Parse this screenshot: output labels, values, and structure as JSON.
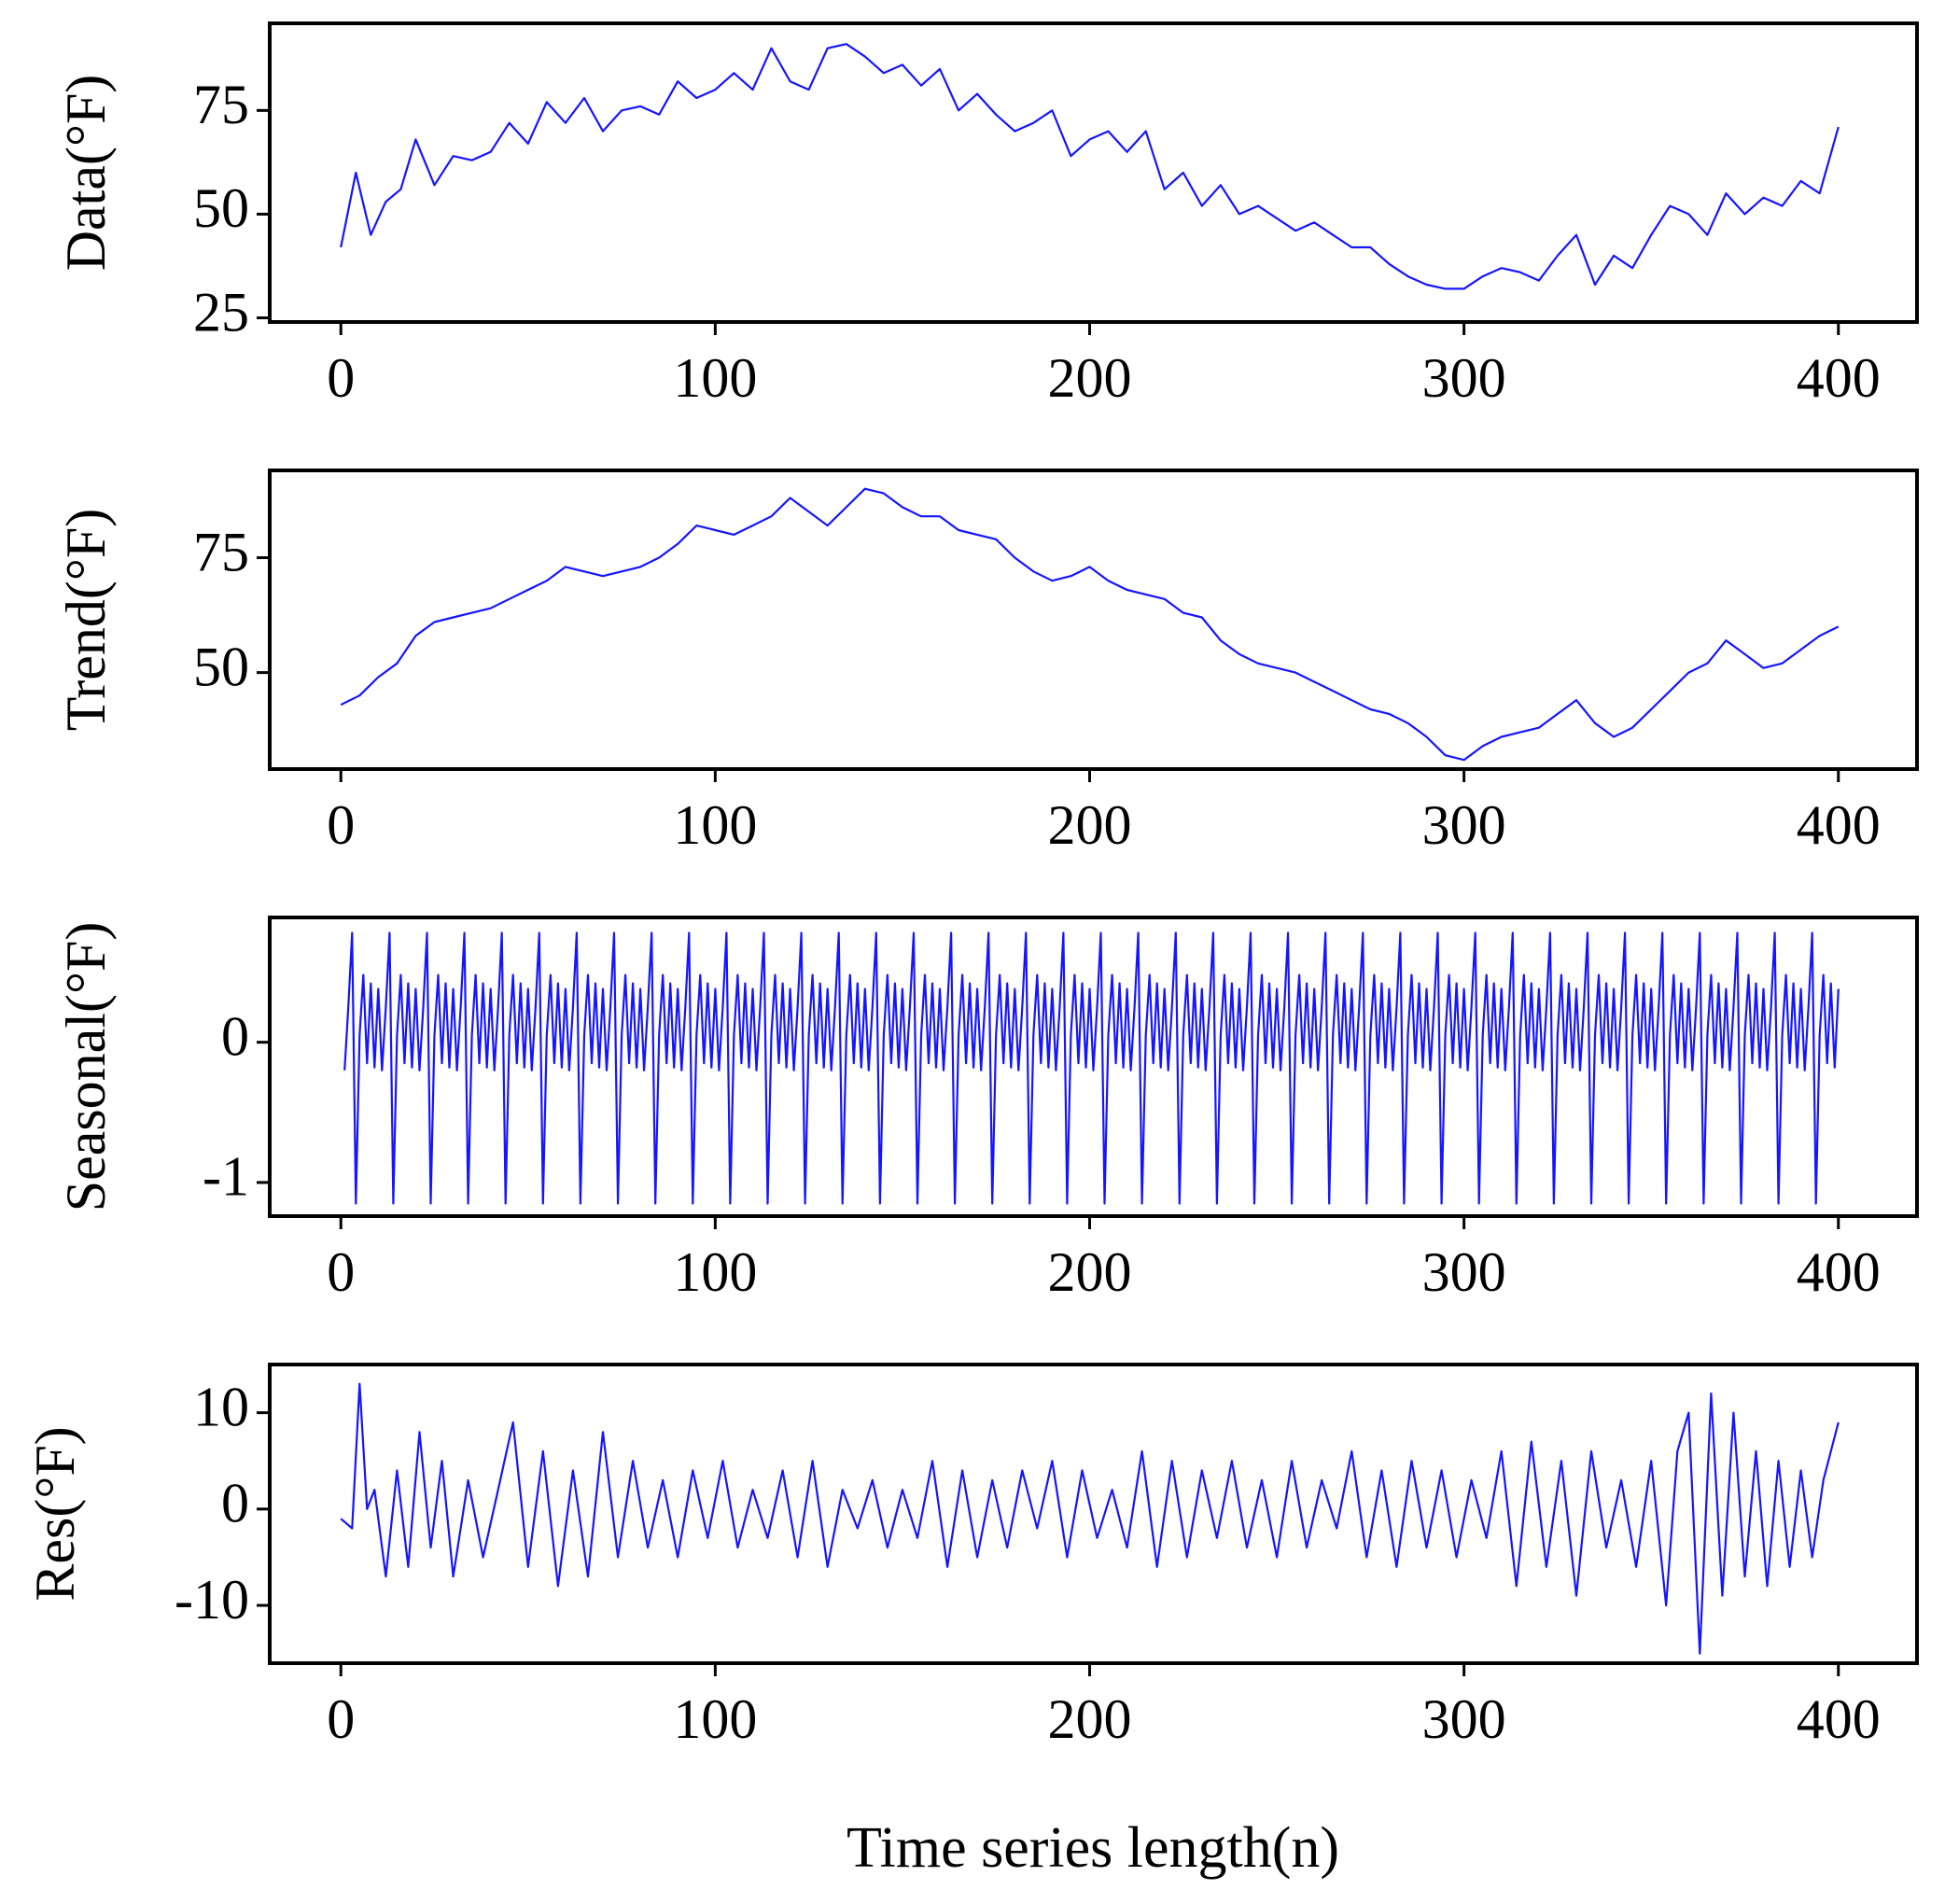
{
  "figure": {
    "xlabel": "Time series length(n)"
  },
  "chart_data": [
    {
      "type": "line",
      "id": "data",
      "ylabel": "Data(°F)",
      "xlim": [
        -19,
        421
      ],
      "ylim": [
        24,
        96
      ],
      "xticks": [
        0,
        100,
        200,
        300,
        400
      ],
      "xtick_labels": [
        "0",
        "100",
        "200",
        "300",
        "400"
      ],
      "yticks": [
        25,
        50,
        75
      ],
      "ytick_labels": [
        "25",
        "50",
        "75"
      ],
      "line_color": "#1515ff",
      "x": [
        0,
        4,
        8,
        12,
        16,
        20,
        25,
        30,
        35,
        40,
        45,
        50,
        55,
        60,
        65,
        70,
        75,
        80,
        85,
        90,
        95,
        100,
        105,
        110,
        115,
        120,
        125,
        130,
        135,
        140,
        145,
        150,
        155,
        160,
        165,
        170,
        175,
        180,
        185,
        190,
        195,
        200,
        205,
        210,
        215,
        220,
        225,
        230,
        235,
        240,
        245,
        250,
        255,
        260,
        265,
        270,
        275,
        280,
        285,
        290,
        295,
        300,
        305,
        310,
        315,
        320,
        325,
        330,
        335,
        340,
        345,
        350,
        355,
        360,
        365,
        370,
        375,
        380,
        385,
        390,
        395,
        400
      ],
      "y": [
        42,
        60,
        45,
        53,
        56,
        68,
        57,
        64,
        63,
        65,
        72,
        67,
        77,
        72,
        78,
        70,
        75,
        76,
        74,
        82,
        78,
        80,
        84,
        80,
        90,
        82,
        80,
        90,
        91,
        88,
        84,
        86,
        81,
        85,
        75,
        79,
        74,
        70,
        72,
        75,
        64,
        68,
        70,
        65,
        70,
        56,
        60,
        52,
        57,
        50,
        52,
        49,
        46,
        48,
        45,
        42,
        42,
        38,
        35,
        33,
        32,
        32,
        35,
        37,
        36,
        34,
        40,
        45,
        33,
        40,
        37,
        45,
        52,
        50,
        45,
        55,
        50,
        54,
        52,
        58,
        55,
        71
      ]
    },
    {
      "type": "line",
      "id": "trend",
      "ylabel": "Trend(°F)",
      "xlim": [
        -19,
        421
      ],
      "ylim": [
        29,
        94
      ],
      "xticks": [
        0,
        100,
        200,
        300,
        400
      ],
      "xtick_labels": [
        "0",
        "100",
        "200",
        "300",
        "400"
      ],
      "yticks": [
        50,
        75
      ],
      "ytick_labels": [
        "50",
        "75"
      ],
      "line_color": "#1515ff",
      "x": [
        0,
        5,
        10,
        15,
        20,
        25,
        30,
        35,
        40,
        45,
        50,
        55,
        60,
        65,
        70,
        75,
        80,
        85,
        90,
        95,
        100,
        105,
        110,
        115,
        120,
        125,
        130,
        135,
        140,
        145,
        150,
        155,
        160,
        165,
        170,
        175,
        180,
        185,
        190,
        195,
        200,
        205,
        210,
        215,
        220,
        225,
        230,
        235,
        240,
        245,
        250,
        255,
        260,
        265,
        270,
        275,
        280,
        285,
        290,
        295,
        300,
        305,
        310,
        315,
        320,
        325,
        330,
        335,
        340,
        345,
        350,
        355,
        360,
        365,
        370,
        375,
        380,
        385,
        390,
        395,
        400
      ],
      "y": [
        43,
        45,
        49,
        52,
        58,
        61,
        62,
        63,
        64,
        66,
        68,
        70,
        73,
        72,
        71,
        72,
        73,
        75,
        78,
        82,
        81,
        80,
        82,
        84,
        88,
        85,
        82,
        86,
        90,
        89,
        86,
        84,
        84,
        81,
        80,
        79,
        75,
        72,
        70,
        71,
        73,
        70,
        68,
        67,
        66,
        63,
        62,
        57,
        54,
        52,
        51,
        50,
        48,
        46,
        44,
        42,
        41,
        39,
        36,
        32,
        31,
        34,
        36,
        37,
        38,
        41,
        44,
        39,
        36,
        38,
        42,
        46,
        50,
        52,
        57,
        54,
        51,
        52,
        55,
        58,
        60
      ]
    },
    {
      "type": "line",
      "id": "seasonal",
      "ylabel": "Seasonal(°F)",
      "xlim": [
        -19,
        421
      ],
      "ylim": [
        -1.24,
        0.89
      ],
      "xticks": [
        0,
        100,
        200,
        300,
        400
      ],
      "xtick_labels": [
        "0",
        "100",
        "200",
        "300",
        "400"
      ],
      "yticks": [
        -1,
        0
      ],
      "ytick_labels": [
        "-1",
        "0"
      ],
      "period": 10,
      "pattern": [
        -0.2,
        0.25,
        0.78,
        -1.15,
        0.05,
        0.48,
        -0.15,
        0.42,
        -0.18,
        0.38
      ],
      "line_color": "#1515ff"
    },
    {
      "type": "line",
      "id": "res",
      "ylabel": "Res(°F)",
      "xlim": [
        -19,
        421
      ],
      "ylim": [
        -16,
        15
      ],
      "xticks": [
        0,
        100,
        200,
        300,
        400
      ],
      "xtick_labels": [
        "0",
        "100",
        "200",
        "300",
        "400"
      ],
      "yticks": [
        -10,
        0,
        10
      ],
      "ytick_labels": [
        "-10",
        "0",
        "10"
      ],
      "line_color": "#1515ff",
      "x": [
        0,
        3,
        5,
        7,
        9,
        12,
        15,
        18,
        21,
        24,
        27,
        30,
        34,
        38,
        42,
        46,
        50,
        54,
        58,
        62,
        66,
        70,
        74,
        78,
        82,
        86,
        90,
        94,
        98,
        102,
        106,
        110,
        114,
        118,
        122,
        126,
        130,
        134,
        138,
        142,
        146,
        150,
        154,
        158,
        162,
        166,
        170,
        174,
        178,
        182,
        186,
        190,
        194,
        198,
        202,
        206,
        210,
        214,
        218,
        222,
        226,
        230,
        234,
        238,
        242,
        246,
        250,
        254,
        258,
        262,
        266,
        270,
        274,
        278,
        282,
        286,
        290,
        294,
        298,
        302,
        306,
        310,
        314,
        318,
        322,
        326,
        330,
        334,
        338,
        342,
        346,
        350,
        354,
        357,
        360,
        363,
        366,
        369,
        372,
        375,
        378,
        381,
        384,
        387,
        390,
        393,
        396,
        400
      ],
      "y": [
        -1,
        -2,
        13,
        0,
        2,
        -7,
        4,
        -6,
        8,
        -4,
        5,
        -7,
        3,
        -5,
        2,
        9,
        -6,
        6,
        -8,
        4,
        -7,
        8,
        -5,
        5,
        -4,
        3,
        -5,
        4,
        -3,
        5,
        -4,
        2,
        -3,
        4,
        -5,
        5,
        -6,
        2,
        -2,
        3,
        -4,
        2,
        -3,
        5,
        -6,
        4,
        -5,
        3,
        -4,
        4,
        -2,
        5,
        -5,
        4,
        -3,
        2,
        -4,
        6,
        -6,
        5,
        -5,
        4,
        -3,
        5,
        -4,
        3,
        -5,
        5,
        -4,
        3,
        -2,
        6,
        -5,
        4,
        -6,
        5,
        -4,
        4,
        -5,
        3,
        -3,
        6,
        -8,
        7,
        -6,
        5,
        -9,
        6,
        -4,
        3,
        -6,
        5,
        -10,
        6,
        10,
        -15,
        12,
        -9,
        10,
        -7,
        6,
        -8,
        5,
        -6,
        4,
        -5,
        3,
        9
      ]
    }
  ]
}
